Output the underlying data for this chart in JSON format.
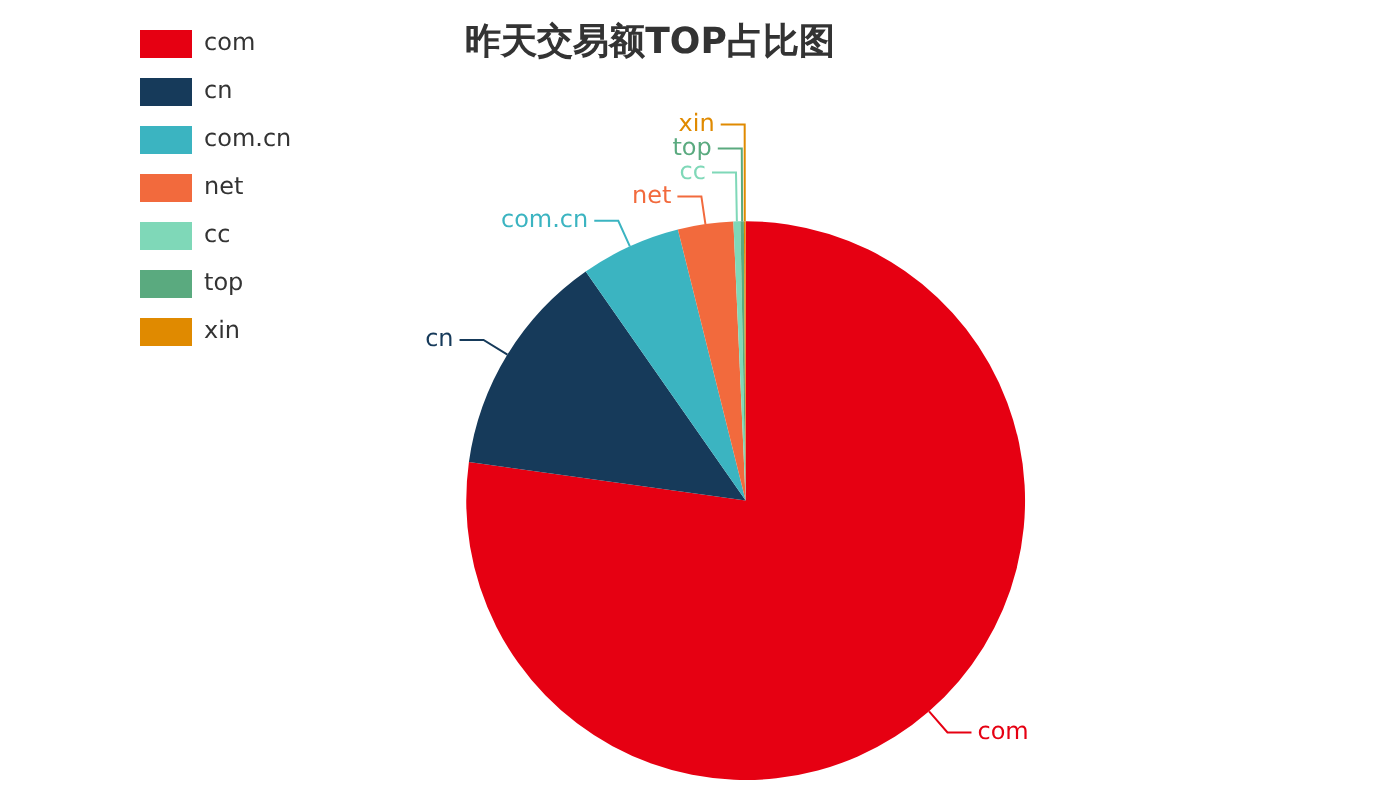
{
  "chart_data": {
    "type": "pie",
    "title": "昨天交易额TOP占比图",
    "categories": [
      "com",
      "cn",
      "com.cn",
      "net",
      "cc",
      "top",
      "xin"
    ],
    "values": [
      77.2,
      13.1,
      5.8,
      3.2,
      0.4,
      0.2,
      0.1
    ],
    "colors": [
      "#e60012",
      "#163a5a",
      "#3bb4c1",
      "#f26a3d",
      "#7fd8b8",
      "#5aaa7f",
      "#e08a00"
    ],
    "legend": "top left"
  }
}
